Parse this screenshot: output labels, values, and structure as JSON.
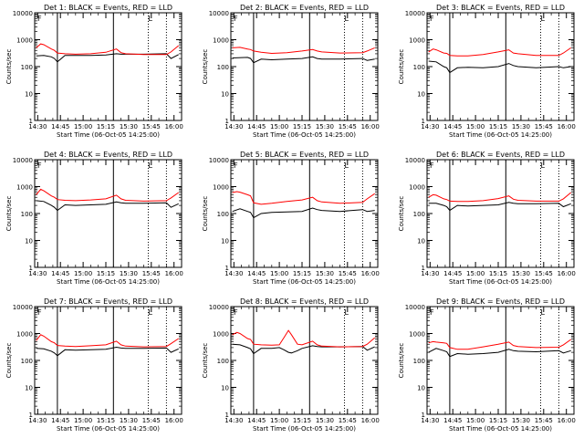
{
  "chart_data": {
    "type": "line",
    "ylabel": "Counts/sec",
    "xlabel": "Start Time (06-Oct-05 14:25:00)",
    "yscale": "log",
    "ylim": [
      1,
      10000
    ],
    "ytick_labels": [
      "1",
      "10",
      "100",
      "1000",
      "10000"
    ],
    "xtick_labels": [
      "14:30",
      "14:45",
      "15:00",
      "15:15",
      "15:30",
      "15:45",
      "16:00"
    ],
    "xlim_minutes_after_1430": [
      -2,
      95
    ],
    "annotation_marker": "F",
    "annotation_marker_right": "L",
    "series_colors": {
      "events": "#000000",
      "lld": "#ff0000"
    },
    "panels": [
      {
        "title": "Det 1: BLACK = Events, RED = LLD",
        "solid_lines": [
          "14:43",
          "15:20"
        ],
        "dotted_lines": [
          "15:43",
          "15:55"
        ],
        "series": [
          {
            "name": "events",
            "x": [
              -1,
              4,
              9,
              11,
              13,
              18,
              25,
              35,
              45,
              52,
              55,
              58,
              70,
              85,
              88,
              93
            ],
            "y": [
              250,
              260,
              230,
              200,
              150,
              260,
              260,
              260,
              270,
              300,
              290,
              290,
              290,
              300,
              200,
              280
            ]
          },
          {
            "name": "lld",
            "x": [
              -1,
              2,
              4,
              9,
              11,
              13,
              18,
              25,
              35,
              45,
              52,
              55,
              58,
              70,
              85,
              88,
              93
            ],
            "y": [
              500,
              700,
              650,
              450,
              400,
              320,
              300,
              290,
              300,
              340,
              450,
              330,
              300,
              280,
              280,
              350,
              600
            ]
          }
        ]
      },
      {
        "title": "Det 2: BLACK = Events, RED = LLD",
        "solid_lines": [
          "14:43",
          "15:20"
        ],
        "dotted_lines": [
          "15:43",
          "15:55"
        ],
        "series": [
          {
            "name": "events",
            "x": [
              -1,
              9,
              11,
              13,
              18,
              25,
              35,
              45,
              52,
              55,
              58,
              70,
              85,
              88,
              93
            ],
            "y": [
              210,
              220,
              200,
              140,
              190,
              180,
              190,
              200,
              230,
              200,
              190,
              190,
              200,
              170,
              190
            ]
          },
          {
            "name": "lld",
            "x": [
              -1,
              4,
              9,
              11,
              13,
              18,
              25,
              35,
              45,
              52,
              55,
              58,
              70,
              85,
              88,
              93
            ],
            "y": [
              500,
              520,
              450,
              430,
              380,
              340,
              310,
              330,
              380,
              430,
              380,
              350,
              320,
              330,
              380,
              500
            ]
          }
        ]
      },
      {
        "title": "Det 3: BLACK = Events, RED = LLD",
        "solid_lines": [
          "14:43",
          "15:20"
        ],
        "dotted_lines": [
          "15:43",
          "15:55"
        ],
        "series": [
          {
            "name": "events",
            "x": [
              -1,
              4,
              9,
              11,
              13,
              18,
              25,
              35,
              45,
              52,
              55,
              58,
              70,
              85,
              88,
              93
            ],
            "y": [
              160,
              150,
              100,
              90,
              60,
              90,
              95,
              90,
              100,
              130,
              110,
              100,
              90,
              100,
              90,
              100
            ]
          },
          {
            "name": "lld",
            "x": [
              -1,
              2,
              4,
              9,
              11,
              13,
              18,
              25,
              35,
              45,
              52,
              55,
              58,
              70,
              85,
              88,
              93
            ],
            "y": [
              350,
              450,
              420,
              320,
              310,
              260,
              250,
              250,
              280,
              350,
              420,
              320,
              300,
              260,
              260,
              320,
              500
            ]
          }
        ]
      },
      {
        "title": "Det 4: BLACK = Events, RED = LLD",
        "solid_lines": [
          "14:43",
          "15:20"
        ],
        "dotted_lines": [
          "15:43",
          "15:55"
        ],
        "series": [
          {
            "name": "events",
            "x": [
              -1,
              4,
              9,
              11,
              13,
              18,
              25,
              35,
              45,
              52,
              55,
              58,
              70,
              85,
              88,
              93
            ],
            "y": [
              300,
              280,
              200,
              170,
              130,
              210,
              200,
              210,
              220,
              270,
              250,
              240,
              240,
              250,
              170,
              230
            ]
          },
          {
            "name": "lld",
            "x": [
              -1,
              2,
              4,
              9,
              11,
              13,
              18,
              25,
              35,
              45,
              52,
              55,
              58,
              70,
              85,
              88,
              93
            ],
            "y": [
              500,
              800,
              700,
              450,
              400,
              330,
              310,
              300,
              320,
              350,
              480,
              350,
              310,
              290,
              300,
              380,
              600
            ]
          }
        ]
      },
      {
        "title": "Det 5: BLACK = Events, RED = LLD",
        "solid_lines": [
          "14:43",
          "15:20"
        ],
        "dotted_lines": [
          "15:43",
          "15:55"
        ],
        "series": [
          {
            "name": "events",
            "x": [
              -1,
              4,
              9,
              11,
              13,
              18,
              25,
              35,
              45,
              52,
              55,
              58,
              70,
              85,
              88,
              93
            ],
            "y": [
              120,
              150,
              120,
              110,
              70,
              100,
              110,
              115,
              120,
              160,
              140,
              130,
              120,
              140,
              120,
              130
            ]
          },
          {
            "name": "lld",
            "x": [
              -1,
              2,
              4,
              9,
              11,
              13,
              18,
              25,
              35,
              45,
              52,
              55,
              58,
              70,
              85,
              88,
              93
            ],
            "y": [
              600,
              650,
              620,
              500,
              450,
              250,
              220,
              240,
              280,
              320,
              400,
              300,
              270,
              240,
              260,
              350,
              550
            ]
          }
        ]
      },
      {
        "title": "Det 6: BLACK = Events, RED = LLD",
        "solid_lines": [
          "14:43",
          "15:20"
        ],
        "dotted_lines": [
          "15:43",
          "15:55"
        ],
        "series": [
          {
            "name": "events",
            "x": [
              -1,
              4,
              9,
              11,
              13,
              18,
              25,
              35,
              45,
              52,
              55,
              58,
              70,
              85,
              88,
              93
            ],
            "y": [
              240,
              240,
              200,
              180,
              130,
              200,
              190,
              200,
              210,
              260,
              240,
              230,
              230,
              240,
              180,
              230
            ]
          },
          {
            "name": "lld",
            "x": [
              -1,
              2,
              4,
              9,
              11,
              13,
              18,
              25,
              35,
              45,
              52,
              55,
              58,
              70,
              85,
              88,
              93
            ],
            "y": [
              400,
              500,
              480,
              350,
              330,
              290,
              280,
              280,
              300,
              360,
              450,
              340,
              310,
              290,
              290,
              350,
              600
            ]
          }
        ]
      },
      {
        "title": "Det 7: BLACK = Events, RED = LLD",
        "solid_lines": [
          "14:43",
          "15:20"
        ],
        "dotted_lines": [
          "15:43",
          "15:55"
        ],
        "series": [
          {
            "name": "events",
            "x": [
              -1,
              4,
              9,
              11,
              13,
              18,
              25,
              35,
              45,
              52,
              55,
              58,
              70,
              85,
              88,
              93
            ],
            "y": [
              280,
              270,
              220,
              190,
              150,
              250,
              240,
              250,
              260,
              310,
              290,
              280,
              280,
              290,
              200,
              270
            ]
          },
          {
            "name": "lld",
            "x": [
              -1,
              2,
              4,
              9,
              11,
              13,
              18,
              25,
              35,
              45,
              52,
              55,
              58,
              70,
              85,
              88,
              93
            ],
            "y": [
              550,
              900,
              800,
              500,
              450,
              360,
              340,
              330,
              350,
              380,
              520,
              380,
              340,
              320,
              330,
              420,
              650
            ]
          }
        ]
      },
      {
        "title": "Det 8: BLACK = Events, RED = LLD",
        "solid_lines": [
          "14:43",
          "15:20"
        ],
        "dotted_lines": [
          "15:43",
          "15:55"
        ],
        "series": [
          {
            "name": "events",
            "x": [
              -1,
              4,
              9,
              11,
              13,
              18,
              25,
              30,
              33,
              36,
              38,
              42,
              45,
              52,
              55,
              58,
              70,
              85,
              88,
              93
            ],
            "y": [
              400,
              380,
              300,
              270,
              180,
              280,
              280,
              300,
              250,
              200,
              190,
              230,
              280,
              350,
              330,
              320,
              320,
              330,
              240,
              320
            ]
          },
          {
            "name": "lld",
            "x": [
              -1,
              2,
              4,
              9,
              11,
              13,
              18,
              25,
              30,
              33,
              36,
              38,
              42,
              45,
              52,
              55,
              58,
              70,
              85,
              88,
              93
            ],
            "y": [
              900,
              1100,
              1000,
              650,
              600,
              400,
              380,
              370,
              380,
              700,
              1300,
              900,
              400,
              380,
              520,
              380,
              340,
              320,
              330,
              400,
              700
            ]
          }
        ]
      },
      {
        "title": "Det 9: BLACK = Events, RED = LLD",
        "solid_lines": [
          "14:43",
          "15:20"
        ],
        "dotted_lines": [
          "15:43",
          "15:55"
        ],
        "series": [
          {
            "name": "events",
            "x": [
              -1,
              4,
              9,
              11,
              13,
              18,
              25,
              35,
              45,
              52,
              55,
              58,
              70,
              85,
              88,
              93
            ],
            "y": [
              200,
              280,
              230,
              210,
              140,
              180,
              170,
              180,
              200,
              260,
              230,
              220,
              210,
              230,
              190,
              230
            ]
          },
          {
            "name": "lld",
            "x": [
              -1,
              2,
              4,
              9,
              11,
              13,
              18,
              25,
              35,
              45,
              52,
              55,
              58,
              70,
              85,
              88,
              93
            ],
            "y": [
              450,
              500,
              480,
              450,
              430,
              300,
              260,
              260,
              320,
              400,
              480,
              360,
              330,
              300,
              310,
              380,
              600
            ]
          }
        ]
      }
    ]
  }
}
